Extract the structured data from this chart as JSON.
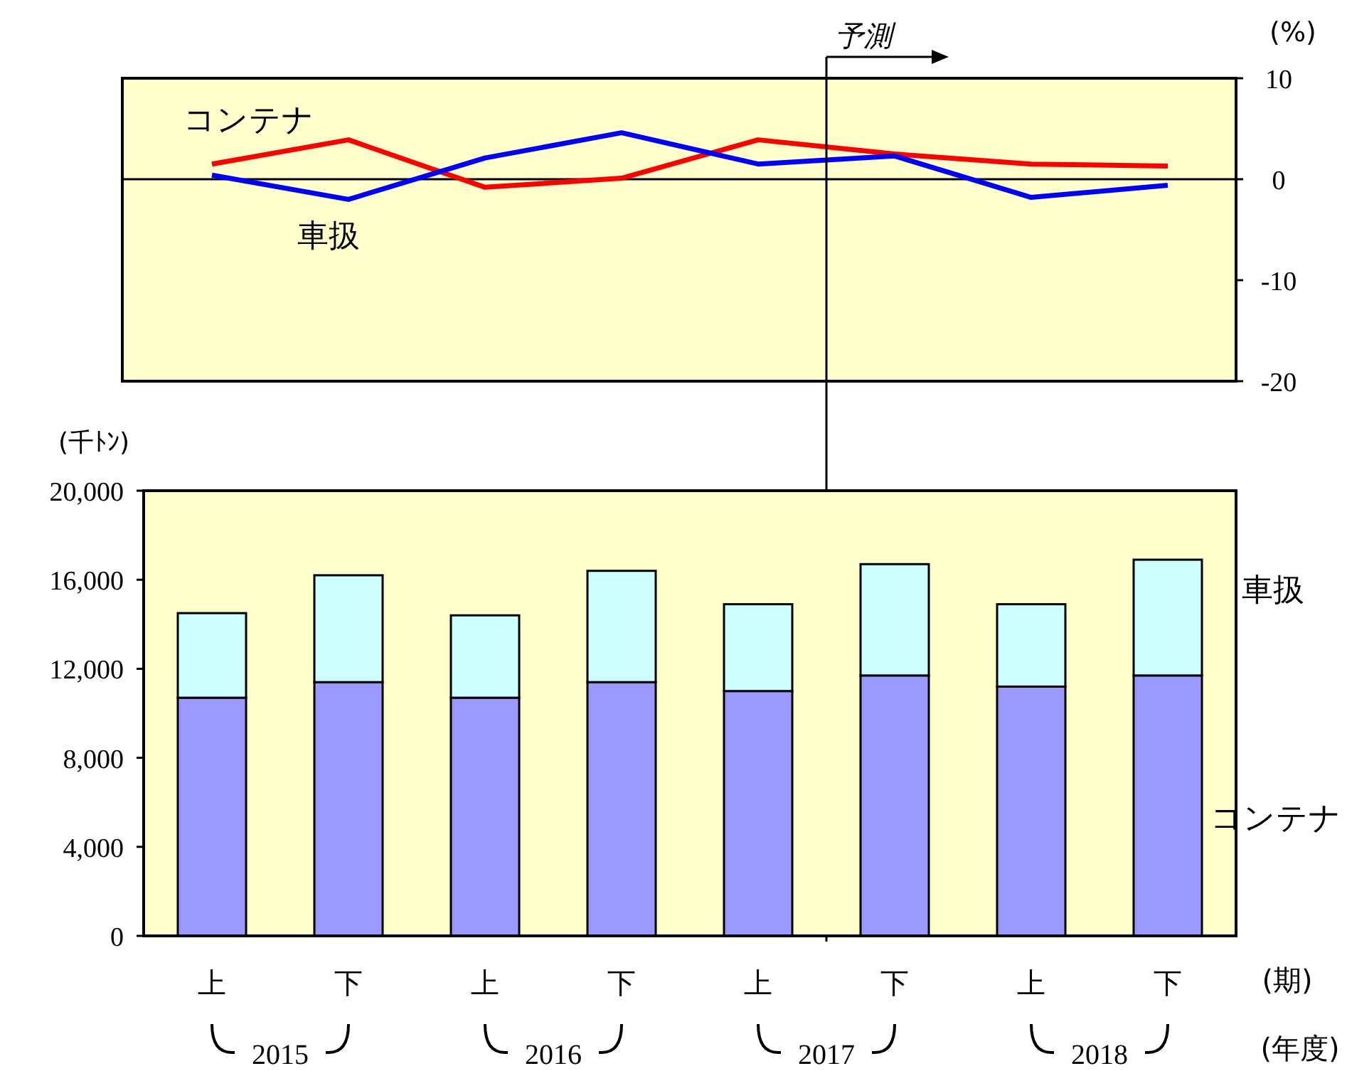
{
  "chart_data": [
    {
      "type": "line",
      "categories": [
        null,
        null,
        null,
        null,
        null,
        null,
        null,
        null
      ],
      "series": [
        {
          "name": "コンテナ",
          "color": "#ff0000",
          "values": [
            1.5,
            3.9,
            -0.8,
            0.1,
            3.9,
            2.5,
            1.5,
            1.3
          ]
        },
        {
          "name": "車扱",
          "color": "#0000ff",
          "values": [
            0.4,
            -2.0,
            2.1,
            4.6,
            1.5,
            2.3,
            -1.8,
            -0.6
          ]
        }
      ],
      "ylim": [
        -20,
        10
      ],
      "yticks": [
        -20,
        -10,
        0,
        10
      ],
      "ylabel": "(%)",
      "legend": false,
      "grid": false,
      "marker": "none",
      "line_style": "solid",
      "ref_lines": [
        {
          "axis": "y",
          "value": 0
        }
      ],
      "annotations": [
        "予測"
      ]
    },
    {
      "type": "bar",
      "stacked": true,
      "categories": [
        "上",
        "下",
        "上",
        "下",
        "上",
        "下",
        "上",
        "下"
      ],
      "series": [
        {
          "name": "コンテナ",
          "color": "#9999ff",
          "values": [
            10700,
            11400,
            10700,
            11400,
            11000,
            11700,
            11200,
            11700
          ]
        },
        {
          "name": "車扱",
          "color": "#ccffff",
          "values": [
            3800,
            4800,
            3700,
            5000,
            3900,
            5000,
            3700,
            5200
          ]
        }
      ],
      "ylim": [
        0,
        20000
      ],
      "yticks": [
        0,
        {
          "value": 4000,
          "label": "4,000"
        },
        {
          "value": 8000,
          "label": "8,000"
        },
        {
          "value": 12000,
          "label": "12,000"
        },
        {
          "value": 16000,
          "label": "16,000"
        },
        {
          "value": 20000,
          "label": "20,000"
        }
      ],
      "ylabel": "(千ﾄﾝ)",
      "xlabel": "(期)",
      "legend": false,
      "grid": false,
      "annotations": [
        "2015",
        "2016",
        "2017",
        "2018",
        "(年度)"
      ]
    }
  ]
}
